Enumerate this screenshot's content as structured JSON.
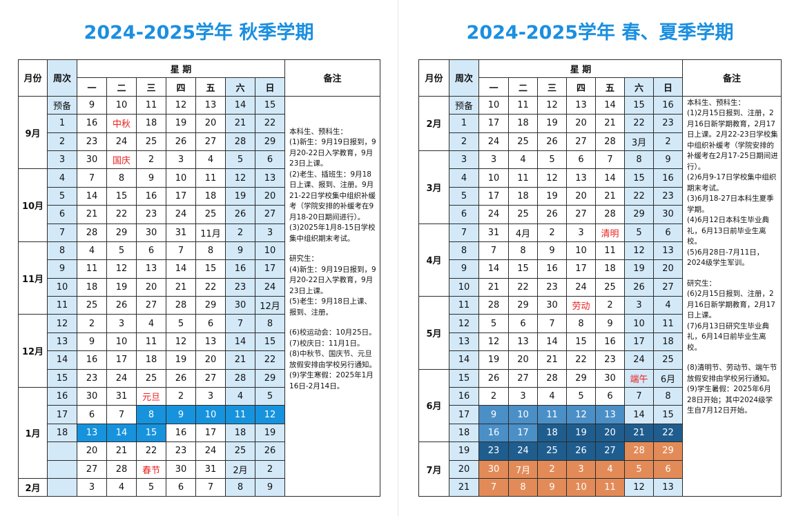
{
  "left": {
    "title": "2024-2025学年 秋季学期",
    "header": {
      "month": "月份",
      "week": "周次",
      "weekdays_title": "星 期",
      "notes": "备注",
      "days": [
        "一",
        "二",
        "三",
        "四",
        "五",
        "六",
        "日"
      ]
    },
    "rows": [
      {
        "month": "9月",
        "week": "预备",
        "days": [
          "9",
          "10",
          "11",
          "12",
          "13",
          "14",
          "15"
        ]
      },
      {
        "month": "",
        "week": "1",
        "days": [
          "16",
          "中秋",
          "18",
          "19",
          "20",
          "21",
          "22"
        ]
      },
      {
        "month": "",
        "week": "2",
        "days": [
          "23",
          "24",
          "25",
          "26",
          "27",
          "28",
          "29"
        ]
      },
      {
        "month": "",
        "week": "3",
        "days": [
          "30",
          "国庆",
          "2",
          "3",
          "4",
          "5",
          "6"
        ]
      },
      {
        "month": "10月",
        "week": "4",
        "days": [
          "7",
          "8",
          "9",
          "10",
          "11",
          "12",
          "13"
        ]
      },
      {
        "month": "",
        "week": "5",
        "days": [
          "14",
          "15",
          "16",
          "17",
          "18",
          "19",
          "20"
        ]
      },
      {
        "month": "",
        "week": "6",
        "days": [
          "21",
          "22",
          "23",
          "24",
          "25",
          "26",
          "27"
        ]
      },
      {
        "month": "",
        "week": "7",
        "days": [
          "28",
          "29",
          "30",
          "31",
          "11月",
          "2",
          "3"
        ]
      },
      {
        "month": "11月",
        "week": "8",
        "days": [
          "4",
          "5",
          "6",
          "7",
          "8",
          "9",
          "10"
        ]
      },
      {
        "month": "",
        "week": "9",
        "days": [
          "11",
          "12",
          "13",
          "14",
          "15",
          "16",
          "17"
        ]
      },
      {
        "month": "",
        "week": "10",
        "days": [
          "18",
          "19",
          "20",
          "21",
          "22",
          "23",
          "24"
        ]
      },
      {
        "month": "",
        "week": "11",
        "days": [
          "25",
          "26",
          "27",
          "28",
          "29",
          "30",
          "12月"
        ]
      },
      {
        "month": "12月",
        "week": "12",
        "days": [
          "2",
          "3",
          "4",
          "5",
          "6",
          "7",
          "8"
        ]
      },
      {
        "month": "",
        "week": "13",
        "days": [
          "9",
          "10",
          "11",
          "12",
          "13",
          "14",
          "15"
        ]
      },
      {
        "month": "",
        "week": "14",
        "days": [
          "16",
          "17",
          "18",
          "19",
          "20",
          "21",
          "22"
        ]
      },
      {
        "month": "",
        "week": "15",
        "days": [
          "23",
          "24",
          "25",
          "26",
          "27",
          "28",
          "29"
        ]
      },
      {
        "month": "1月",
        "week": "16",
        "days": [
          "30",
          "31",
          "元旦",
          "2",
          "3",
          "4",
          "5"
        ]
      },
      {
        "month": "",
        "week": "17",
        "days": [
          "6",
          "7",
          "8",
          "9",
          "10",
          "11",
          "12"
        ]
      },
      {
        "month": "",
        "week": "18",
        "days": [
          "13",
          "14",
          "15",
          "16",
          "17",
          "18",
          "19"
        ]
      },
      {
        "month": "",
        "week": "",
        "days": [
          "20",
          "21",
          "22",
          "23",
          "24",
          "25",
          "26"
        ]
      },
      {
        "month": "",
        "week": "",
        "days": [
          "27",
          "28",
          "春节",
          "30",
          "31",
          "2月",
          "2"
        ]
      },
      {
        "month": "2月",
        "week": "",
        "days": [
          "3",
          "4",
          "5",
          "6",
          "7",
          "8",
          "9"
        ]
      }
    ],
    "notes": [
      "本科生、预科生：",
      "(1)新生：9月19日报到，9月20-22日入学教育，9月23日上课。",
      "(2)老生、插班生：9月18日上课、报到、注册。9月21-22日学校集中组织补缓考（学院安排的补缓考在9月18-20日期间进行）。",
      "(3)2025年1月8-15日学校集中组织期末考试。",
      "",
      "研究生：",
      "(4)新生：9月19日报到，9月20-22日入学教育，9月23日上课。",
      "(5)老生：9月18日上课、报到、注册。",
      "",
      "(6)校运动会：10月25日。",
      "(7)校庆日：11月1日。",
      "(8)中秋节、国庆节、元旦放假安排由学校另行通知。",
      "(9)学生寒假：2025年1月16日-2月14日。"
    ]
  },
  "right": {
    "title": "2024-2025学年 春、夏季学期",
    "header": {
      "month": "月份",
      "week": "周次",
      "weekdays_title": "星 期",
      "notes": "备注",
      "days": [
        "一",
        "二",
        "三",
        "四",
        "五",
        "六",
        "日"
      ]
    },
    "rows": [
      {
        "month": "",
        "week": "预备",
        "days": [
          "10",
          "11",
          "12",
          "13",
          "14",
          "15",
          "16"
        ]
      },
      {
        "month": "2月",
        "week": "1",
        "days": [
          "17",
          "18",
          "19",
          "20",
          "21",
          "22",
          "23"
        ]
      },
      {
        "month": "",
        "week": "2",
        "days": [
          "24",
          "25",
          "26",
          "27",
          "28",
          "3月",
          "2"
        ]
      },
      {
        "month": "3月",
        "week": "3",
        "days": [
          "3",
          "4",
          "5",
          "6",
          "7",
          "8",
          "9"
        ]
      },
      {
        "month": "",
        "week": "4",
        "days": [
          "10",
          "11",
          "12",
          "13",
          "14",
          "15",
          "16"
        ]
      },
      {
        "month": "",
        "week": "5",
        "days": [
          "17",
          "18",
          "19",
          "20",
          "21",
          "22",
          "23"
        ]
      },
      {
        "month": "",
        "week": "6",
        "days": [
          "24",
          "25",
          "26",
          "27",
          "28",
          "29",
          "30"
        ]
      },
      {
        "month": "4月",
        "week": "7",
        "days": [
          "31",
          "4月",
          "2",
          "3",
          "清明",
          "5",
          "6"
        ]
      },
      {
        "month": "",
        "week": "8",
        "days": [
          "7",
          "8",
          "9",
          "10",
          "11",
          "12",
          "13"
        ]
      },
      {
        "month": "",
        "week": "9",
        "days": [
          "14",
          "15",
          "16",
          "17",
          "18",
          "19",
          "20"
        ]
      },
      {
        "month": "",
        "week": "10",
        "days": [
          "21",
          "22",
          "23",
          "24",
          "25",
          "26",
          "27"
        ]
      },
      {
        "month": "5月",
        "week": "11",
        "days": [
          "28",
          "29",
          "30",
          "劳动",
          "2",
          "3",
          "4"
        ]
      },
      {
        "month": "",
        "week": "12",
        "days": [
          "5",
          "6",
          "7",
          "8",
          "9",
          "10",
          "11"
        ]
      },
      {
        "month": "",
        "week": "13",
        "days": [
          "12",
          "13",
          "14",
          "15",
          "16",
          "17",
          "18"
        ]
      },
      {
        "month": "",
        "week": "14",
        "days": [
          "19",
          "20",
          "21",
          "22",
          "23",
          "24",
          "25"
        ]
      },
      {
        "month": "6月",
        "week": "15",
        "days": [
          "26",
          "27",
          "28",
          "29",
          "30",
          "端午",
          "6月"
        ]
      },
      {
        "month": "",
        "week": "16",
        "days": [
          "2",
          "3",
          "4",
          "5",
          "6",
          "7",
          "8"
        ]
      },
      {
        "month": "",
        "week": "17",
        "days": [
          "9",
          "10",
          "11",
          "12",
          "13",
          "14",
          "15"
        ]
      },
      {
        "month": "",
        "week": "18",
        "days": [
          "16",
          "17",
          "18",
          "19",
          "20",
          "21",
          "22"
        ]
      },
      {
        "month": "7月",
        "week": "19",
        "days": [
          "23",
          "24",
          "25",
          "26",
          "27",
          "28",
          "29"
        ]
      },
      {
        "month": "",
        "week": "20",
        "days": [
          "30",
          "7月",
          "2",
          "3",
          "4",
          "5",
          "6"
        ]
      },
      {
        "month": "",
        "week": "21",
        "days": [
          "7",
          "8",
          "9",
          "10",
          "11",
          "12",
          "13"
        ]
      }
    ],
    "notes": [
      "本科生、预科生：",
      "(1)2月15日报到、注册，2月16日新学期教育，2月17日上课。2月22-23日学校集中组织补缓考（学院安排的补缓考在2月17-25日期间进行）。",
      "(2)6月9-17日学校集中组织期末考试。",
      "(3)6月18-27日本科生夏季学期。",
      "(4)6月12日本科生毕业典礼，6月13日前毕业生离校。",
      "(5)6月28日-7月11日，2024级学生军训。",
      "",
      "研究生：",
      "(6)2月15日报到、注册，2月16日新学期教育，2月17日上课。",
      "(7)6月13日研究生毕业典礼，6月14日前毕业生离校。",
      "",
      "(8)清明节、劳动节、端午节放假安排由学校另行通知。",
      "(9)学生暑假：2025年6月28日开始；其中2024级学生自7月12日开始。"
    ]
  },
  "colors": {
    "title": "#1b8fe0",
    "week_column": "#d3e9f8",
    "holiday_text": "#e8211f",
    "exam_fall": "#1793dd",
    "exam_spring": "#4b8fc7",
    "summer_term": "#1f5d8e",
    "summer_holiday": "#e38b58"
  }
}
